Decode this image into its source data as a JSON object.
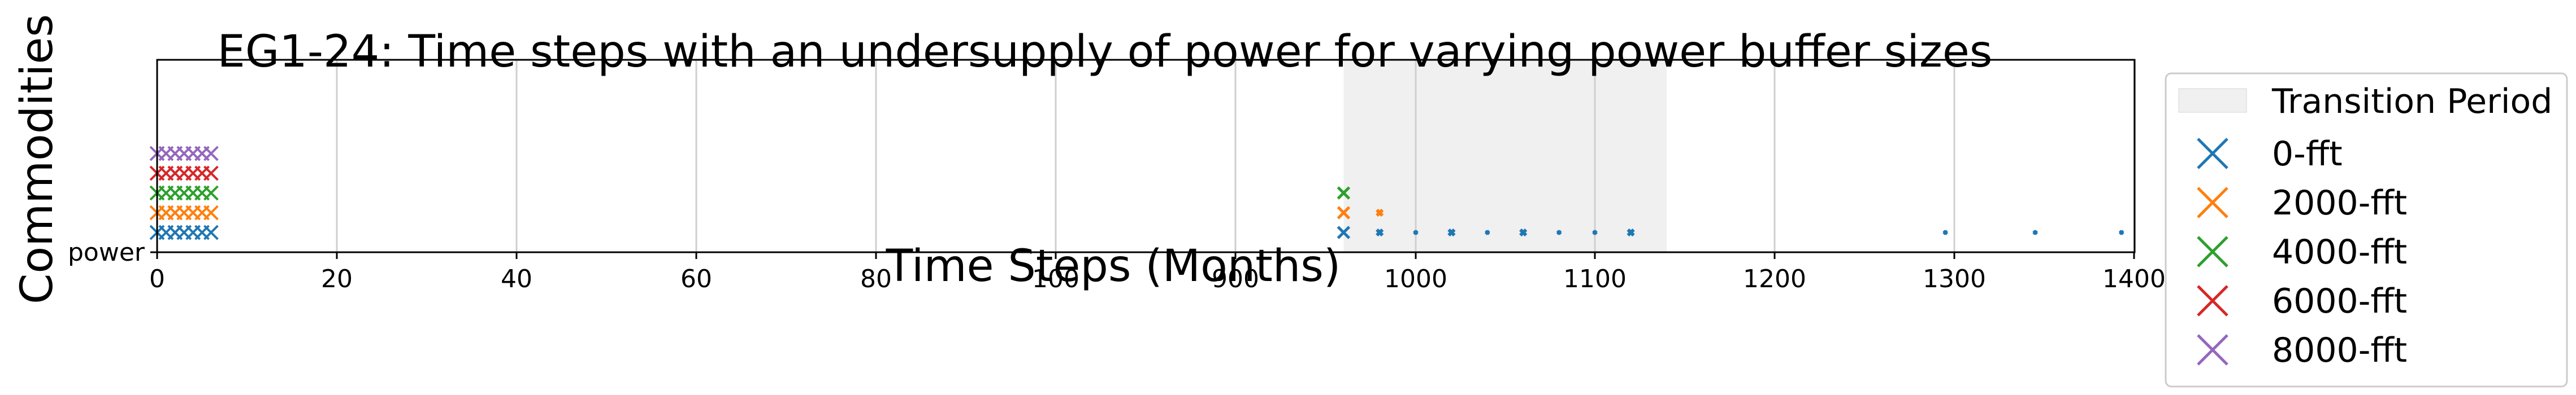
{
  "chart_data": {
    "type": "scatter",
    "title": "EG1-24: Time steps with an undersupply of power for varying power buffer sizes",
    "xlabel": "Time Steps (Months)",
    "ylabel": "Commodities",
    "xlim": [
      0,
      1450
    ],
    "x_ticks": [
      0,
      20,
      40,
      60,
      80,
      100,
      900,
      1000,
      1100,
      1200,
      1300,
      1400
    ],
    "y_categories": [
      "power"
    ],
    "grid": true,
    "legend_position": "outside-right",
    "transition_period": {
      "label": "Transition Period",
      "x_start": 960,
      "x_end": 1140,
      "color": "#f0f0f0"
    },
    "series": [
      {
        "name": "0-fft",
        "color": "#1f77b4",
        "marker": "x",
        "x": [
          0,
          1,
          2,
          3,
          4,
          5,
          6,
          960,
          980,
          1000,
          1020,
          1040,
          1060,
          1080,
          1100,
          1120,
          1295,
          1345,
          1393
        ]
      },
      {
        "name": "2000-fft",
        "color": "#ff7f0e",
        "marker": "x",
        "x": [
          0,
          1,
          2,
          3,
          4,
          5,
          6,
          960,
          980
        ]
      },
      {
        "name": "4000-fft",
        "color": "#2ca02c",
        "marker": "x",
        "x": [
          0,
          1,
          2,
          3,
          4,
          5,
          6,
          960
        ]
      },
      {
        "name": "6000-fft",
        "color": "#d62728",
        "marker": "x",
        "x": [
          0,
          1,
          2,
          3,
          4,
          5,
          6
        ]
      },
      {
        "name": "8000-fft",
        "color": "#9467bd",
        "marker": "x",
        "x": [
          0,
          1,
          2,
          3,
          4,
          5,
          6
        ]
      }
    ]
  }
}
